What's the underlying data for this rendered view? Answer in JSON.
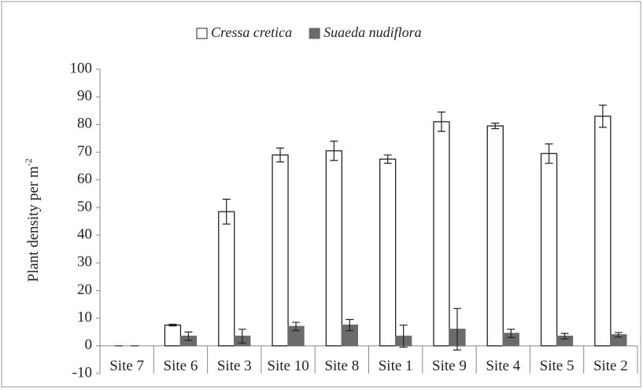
{
  "chart_data": {
    "type": "bar",
    "y_label": {
      "text": "Plant density per m",
      "superscript": "-2"
    },
    "categories": [
      "Site 7",
      "Site 6",
      "Site 3",
      "Site 10",
      "Site 8",
      "Site 1",
      "Site 9",
      "Site 4",
      "Site 5",
      "Site 2"
    ],
    "series": [
      {
        "name": "Cressa cretica",
        "color": "#ffffff",
        "values": [
          0,
          7.5,
          48.5,
          69,
          70.5,
          67.5,
          81,
          79.5,
          69.5,
          83
        ],
        "errors": [
          0,
          0.3,
          4.5,
          2.5,
          3.5,
          1.5,
          3.5,
          1,
          3.5,
          4
        ]
      },
      {
        "name": "Suaeda nudiflora",
        "color": "#6b6b6b",
        "values": [
          0,
          3.5,
          3.5,
          7,
          7.5,
          3.5,
          6,
          4.5,
          3.5,
          4
        ],
        "errors": [
          0,
          1.5,
          2.5,
          1.5,
          2,
          4,
          7.5,
          1.5,
          1,
          0.8
        ]
      }
    ],
    "ylim": [
      -10,
      100
    ],
    "yticks": [
      -10,
      0,
      10,
      20,
      30,
      40,
      50,
      60,
      70,
      80,
      90,
      100
    ],
    "legend": "top"
  }
}
